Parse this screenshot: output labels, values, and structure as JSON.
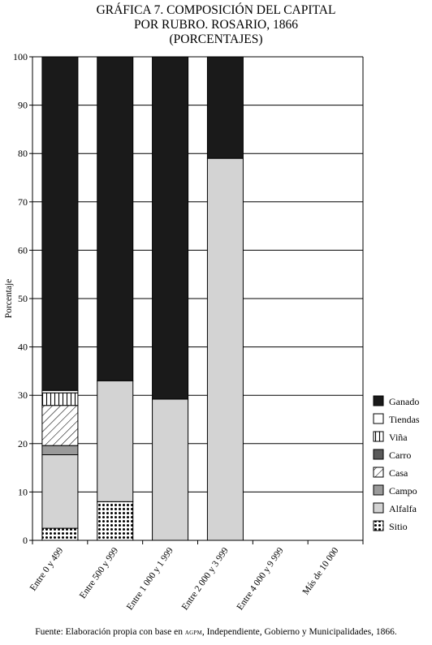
{
  "chart_data": {
    "type": "bar",
    "stacked": true,
    "title_lines": [
      "GRÁFICA 7. COMPOSICIÓN DEL CAPITAL",
      "POR RUBRO. ROSARIO, 1866",
      "(PORCENTAJES)"
    ],
    "ylabel": "Porcentaje",
    "xlabel": "",
    "ylim": [
      0,
      100
    ],
    "yticks": [
      "0",
      "10",
      "20",
      "30",
      "40",
      "50",
      "60",
      "70",
      "80",
      "90",
      "100"
    ],
    "grid": "horizontal",
    "legend_position": "right",
    "categories": [
      "Entre 0 y 499",
      "Entre 500 y 999",
      "Entre 1 000 y 1 999",
      "Entre 2 000 y 3 999",
      "Entre 4 000 y 9 999",
      "Más de 10 000"
    ],
    "series": [
      {
        "name": "Sitio",
        "pattern": "dots",
        "values": [
          2.5,
          8,
          0,
          0,
          0,
          0
        ]
      },
      {
        "name": "Alfalfa",
        "pattern": "lightgray",
        "values": [
          15.2,
          25,
          29.2,
          79,
          0,
          0
        ]
      },
      {
        "name": "Campo",
        "pattern": "gray",
        "values": [
          1.9,
          0,
          0,
          0,
          0,
          0
        ]
      },
      {
        "name": "Casa",
        "pattern": "diagonal",
        "values": [
          8.3,
          0,
          0,
          0,
          0,
          0
        ]
      },
      {
        "name": "Carro",
        "pattern": "darkgray",
        "values": [
          0,
          0,
          0,
          0,
          0,
          0
        ]
      },
      {
        "name": "Viña",
        "pattern": "vertical",
        "values": [
          2.6,
          0,
          0,
          0,
          0,
          0
        ]
      },
      {
        "name": "Tiendas",
        "pattern": "white",
        "values": [
          0.5,
          0,
          0,
          0,
          0,
          0
        ]
      },
      {
        "name": "Ganado",
        "pattern": "black",
        "values": [
          69,
          67,
          70.8,
          21,
          0,
          0
        ]
      }
    ],
    "legend_order": [
      "Ganado",
      "Tiendas",
      "Viña",
      "Carro",
      "Casa",
      "Campo",
      "Alfalfa",
      "Sitio"
    ],
    "colors": {
      "black": "#1a1a1a",
      "darkgray": "#5a5a5a",
      "gray": "#9a9a9a",
      "lightgray": "#d3d3d3",
      "white": "#ffffff"
    }
  },
  "source": {
    "prefix": "Fuente: Elaboración propia con base en ",
    "agpm": "agpm",
    "suffix": ", Independiente, Gobierno y Municipalidades, 1866."
  }
}
